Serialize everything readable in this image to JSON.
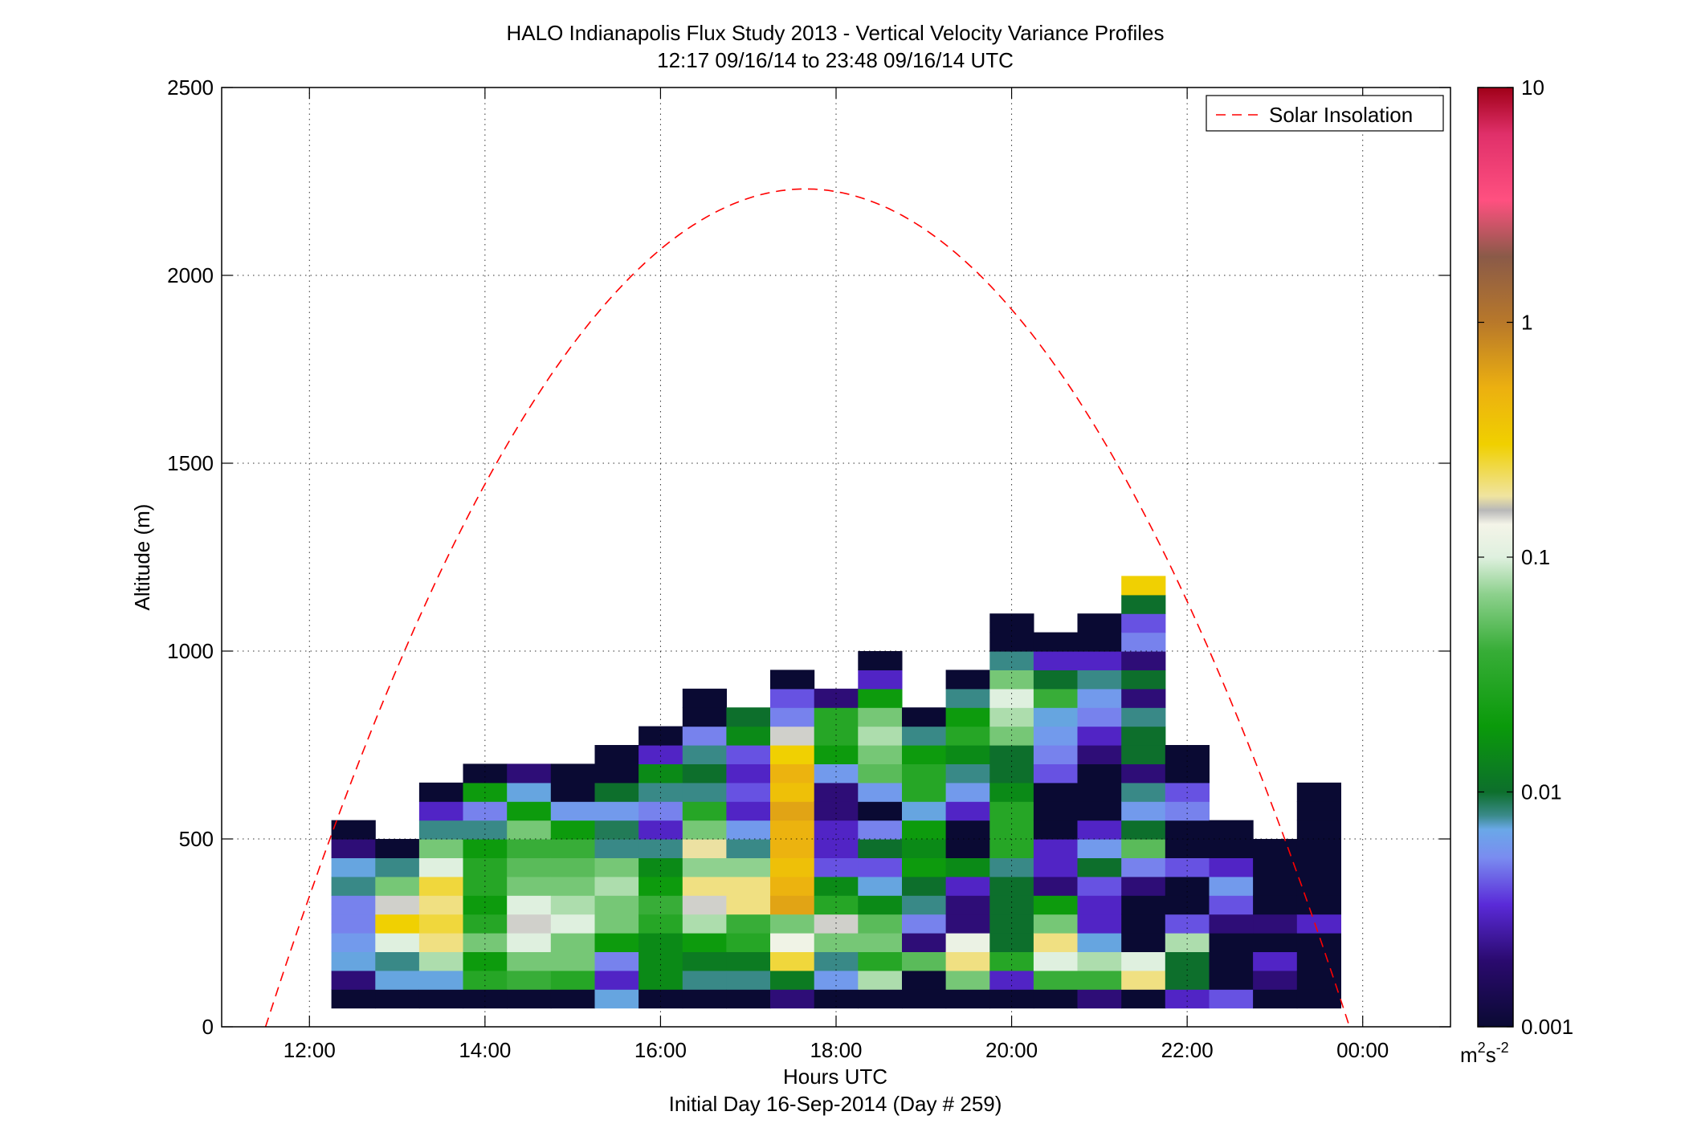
{
  "chart_data": {
    "type": "heatmap",
    "title": "HALO Indianapolis Flux Study 2013 - Vertical Velocity Variance Profiles",
    "subtitle": "12:17 09/16/14 to 23:48 09/16/14  UTC",
    "xlabel": "Hours UTC",
    "xlabel2": "Initial Day 16-Sep-2014 (Day # 259)",
    "ylabel": "Altitude (m)",
    "x_unit": "hours UTC",
    "xlim": [
      11.0,
      25.0
    ],
    "ylim": [
      0,
      2500
    ],
    "x_ticks": [
      {
        "value": 12,
        "label": "12:00"
      },
      {
        "value": 14,
        "label": "14:00"
      },
      {
        "value": 16,
        "label": "16:00"
      },
      {
        "value": 18,
        "label": "18:00"
      },
      {
        "value": 20,
        "label": "20:00"
      },
      {
        "value": 22,
        "label": "22:00"
      },
      {
        "value": 24,
        "label": "00:00"
      }
    ],
    "y_ticks": [
      {
        "value": 0,
        "label": "0"
      },
      {
        "value": 500,
        "label": "500"
      },
      {
        "value": 1000,
        "label": "1000"
      },
      {
        "value": 1500,
        "label": "1500"
      },
      {
        "value": 2000,
        "label": "2000"
      },
      {
        "value": 2500,
        "label": "2500"
      }
    ],
    "grid": true,
    "colorbar": {
      "scale": "log",
      "range": [
        0.001,
        10
      ],
      "ticks": [
        {
          "value": 0.001,
          "label": "0.001"
        },
        {
          "value": 0.01,
          "label": "0.01"
        },
        {
          "value": 0.1,
          "label": "0.1"
        },
        {
          "value": 1,
          "label": "1"
        },
        {
          "value": 10,
          "label": "10"
        }
      ],
      "unit_base": "m",
      "unit_exp1": "2",
      "unit_mid": "s",
      "unit_exp2": "-2"
    },
    "legend": {
      "label": "Solar Insolation",
      "position": "top-right",
      "color": "#ff0000"
    },
    "solar_curve": {
      "start_h": 11.5,
      "end_h": 23.85,
      "peak_h": 17.65,
      "peak_alt": 2230
    },
    "cell_hours": 0.5,
    "cell_alt": 50,
    "columns": [
      {
        "x": 12.5,
        "bottom": 50,
        "values": [
          0.001,
          0.002,
          0.007,
          0.006,
          0.005,
          0.005,
          0.008,
          0.007,
          0.002,
          0.001
        ]
      },
      {
        "x": 13.0,
        "bottom": 50,
        "values": [
          0.001,
          0.007,
          0.008,
          0.1,
          0.3,
          0.15,
          0.06,
          0.008,
          0.001
        ]
      },
      {
        "x": 13.5,
        "bottom": 50,
        "values": [
          0.001,
          0.007,
          0.08,
          0.2,
          0.25,
          0.2,
          0.25,
          0.1,
          0.06,
          0.008,
          0.003,
          0.001
        ]
      },
      {
        "x": 14.0,
        "bottom": 50,
        "values": [
          0.001,
          0.03,
          0.02,
          0.06,
          0.03,
          0.02,
          0.03,
          0.03,
          0.02,
          0.008,
          0.005,
          0.02,
          0.001
        ]
      },
      {
        "x": 14.5,
        "bottom": 50,
        "values": [
          0.001,
          0.04,
          0.06,
          0.1,
          0.15,
          0.1,
          0.06,
          0.05,
          0.04,
          0.06,
          0.02,
          0.007,
          0.002
        ]
      },
      {
        "x": 15.0,
        "bottom": 50,
        "values": [
          0.001,
          0.03,
          0.06,
          0.06,
          0.1,
          0.08,
          0.06,
          0.05,
          0.04,
          0.02,
          0.006,
          0.001,
          0.001
        ]
      },
      {
        "x": 15.5,
        "bottom": 50,
        "values": [
          0.007,
          0.003,
          0.005,
          0.02,
          0.06,
          0.06,
          0.08,
          0.06,
          0.008,
          0.009,
          0.006,
          0.01,
          0.001,
          0.001
        ]
      },
      {
        "x": 16.0,
        "bottom": 50,
        "values": [
          0.001,
          0.015,
          0.015,
          0.015,
          0.03,
          0.04,
          0.02,
          0.015,
          0.008,
          0.003,
          0.005,
          0.008,
          0.015,
          0.003,
          0.001
        ]
      },
      {
        "x": 16.5,
        "bottom": 50,
        "values": [
          0.001,
          0.008,
          0.012,
          0.02,
          0.08,
          0.15,
          0.2,
          0.07,
          0.18,
          0.06,
          0.03,
          0.008,
          0.01,
          0.008,
          0.005,
          0.001,
          0.001
        ]
      },
      {
        "x": 17.0,
        "bottom": 50,
        "values": [
          0.001,
          0.008,
          0.012,
          0.03,
          0.04,
          0.2,
          0.2,
          0.07,
          0.008,
          0.006,
          0.003,
          0.004,
          0.003,
          0.004,
          0.015,
          0.01
        ]
      },
      {
        "x": 17.5,
        "bottom": 50,
        "values": [
          0.002,
          0.012,
          0.25,
          0.13,
          0.06,
          0.6,
          0.5,
          0.4,
          0.5,
          0.5,
          0.6,
          0.4,
          0.5,
          0.3,
          0.15,
          0.005,
          0.004,
          0.001
        ]
      },
      {
        "x": 18.0,
        "bottom": 50,
        "values": [
          0.001,
          0.006,
          0.008,
          0.06,
          0.15,
          0.03,
          0.015,
          0.004,
          0.003,
          0.003,
          0.002,
          0.002,
          0.006,
          0.02,
          0.03,
          0.03,
          0.002
        ]
      },
      {
        "x": 18.5,
        "bottom": 50,
        "values": [
          0.001,
          0.08,
          0.03,
          0.06,
          0.05,
          0.015,
          0.007,
          0.004,
          0.01,
          0.005,
          0.001,
          0.006,
          0.05,
          0.06,
          0.08,
          0.06,
          0.02,
          0.003,
          0.001
        ]
      },
      {
        "x": 19.0,
        "bottom": 50,
        "values": [
          0.001,
          0.001,
          0.05,
          0.002,
          0.005,
          0.008,
          0.01,
          0.02,
          0.015,
          0.02,
          0.007,
          0.03,
          0.03,
          0.02,
          0.008,
          0.001
        ]
      },
      {
        "x": 19.5,
        "bottom": 50,
        "values": [
          0.001,
          0.06,
          0.2,
          0.12,
          0.002,
          0.002,
          0.003,
          0.015,
          0.001,
          0.001,
          0.003,
          0.006,
          0.008,
          0.015,
          0.03,
          0.02,
          0.008,
          0.001
        ]
      },
      {
        "x": 20.0,
        "bottom": 50,
        "values": [
          0.001,
          0.003,
          0.03,
          0.01,
          0.01,
          0.01,
          0.01,
          0.008,
          0.03,
          0.03,
          0.03,
          0.015,
          0.01,
          0.01,
          0.06,
          0.08,
          0.1,
          0.06,
          0.008,
          0.001,
          0.001
        ]
      },
      {
        "x": 20.5,
        "bottom": 50,
        "values": [
          0.001,
          0.04,
          0.1,
          0.2,
          0.06,
          0.02,
          0.002,
          0.003,
          0.003,
          0.001,
          0.001,
          0.001,
          0.004,
          0.005,
          0.006,
          0.007,
          0.04,
          0.01,
          0.003,
          0.001
        ]
      },
      {
        "x": 21.0,
        "bottom": 50,
        "values": [
          0.002,
          0.04,
          0.08,
          0.007,
          0.003,
          0.003,
          0.004,
          0.01,
          0.006,
          0.003,
          0.001,
          0.001,
          0.001,
          0.002,
          0.003,
          0.005,
          0.006,
          0.008,
          0.003,
          0.001,
          0.001
        ]
      },
      {
        "x": 21.5,
        "bottom": 50,
        "values": [
          0.001,
          0.2,
          0.1,
          0.001,
          0.001,
          0.001,
          0.002,
          0.005,
          0.05,
          0.01,
          0.006,
          0.008,
          0.002,
          0.01,
          0.01,
          0.008,
          0.002,
          0.01,
          0.002,
          0.005,
          0.004,
          0.01,
          0.3
        ]
      },
      {
        "x": 22.0,
        "bottom": 50,
        "values": [
          0.003,
          0.01,
          0.01,
          0.08,
          0.004,
          0.001,
          0.001,
          0.004,
          0.001,
          0.001,
          0.005,
          0.004,
          0.001,
          0.001
        ]
      },
      {
        "x": 22.5,
        "bottom": 50,
        "values": [
          0.004,
          0.001,
          0.001,
          0.001,
          0.002,
          0.004,
          0.006,
          0.003,
          0.001,
          0.001
        ]
      },
      {
        "x": 23.0,
        "bottom": 50,
        "values": [
          0.001,
          0.002,
          0.003,
          0.001,
          0.002,
          0.001,
          0.001,
          0.001,
          0.001
        ]
      },
      {
        "x": 23.5,
        "bottom": 50,
        "values": [
          0.001,
          0.001,
          0.001,
          0.001,
          0.003,
          0.001,
          0.001,
          0.001,
          0.001,
          0.001,
          0.001,
          0.001
        ]
      }
    ]
  }
}
